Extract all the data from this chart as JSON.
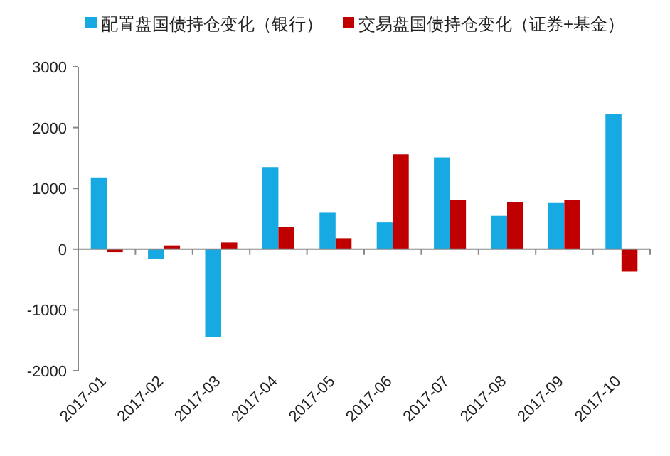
{
  "chart_data": {
    "type": "bar",
    "categories": [
      "2017-01",
      "2017-02",
      "2017-03",
      "2017-04",
      "2017-05",
      "2017-06",
      "2017-07",
      "2017-08",
      "2017-09",
      "2017-10"
    ],
    "series": [
      {
        "name": "配置盘国债持仓变化（银行）",
        "color": "#17a9e1",
        "values": [
          1180,
          -160,
          -1440,
          1350,
          600,
          440,
          1510,
          550,
          760,
          2220
        ]
      },
      {
        "name": "交易盘国债持仓变化（证券+基金）",
        "color": "#c00000",
        "values": [
          -50,
          60,
          110,
          370,
          180,
          1560,
          810,
          780,
          810,
          -370
        ]
      }
    ],
    "ylim": [
      -2000,
      3000
    ],
    "yticks": [
      -2000,
      -1000,
      0,
      1000,
      2000,
      3000
    ],
    "legend": "top"
  }
}
